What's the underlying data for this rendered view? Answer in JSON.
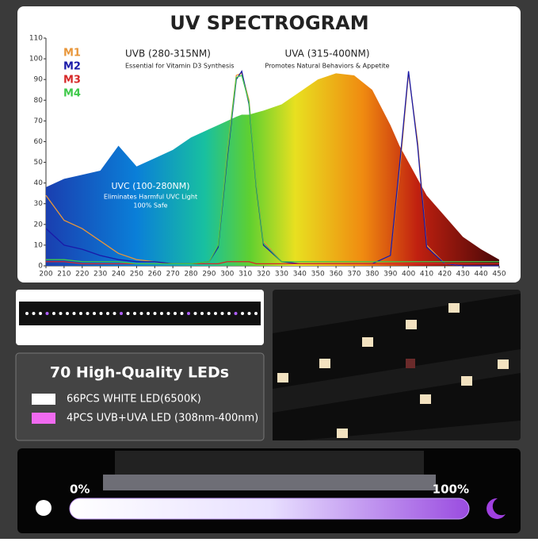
{
  "chart_data": {
    "type": "line",
    "title": "UV SPECTROGRAM",
    "x": [
      200,
      210,
      220,
      230,
      240,
      250,
      260,
      270,
      280,
      290,
      295,
      300,
      305,
      308,
      312,
      316,
      320,
      330,
      340,
      350,
      360,
      370,
      380,
      390,
      395,
      400,
      405,
      410,
      420,
      430,
      440,
      450
    ],
    "spectrum_values": [
      38,
      42,
      44,
      46,
      58,
      48,
      52,
      56,
      62,
      66,
      68,
      70,
      72,
      73,
      73,
      74,
      75,
      78,
      84,
      90,
      93,
      92,
      85,
      68,
      58,
      50,
      42,
      34,
      24,
      14,
      8,
      3
    ],
    "series": [
      {
        "name": "M1",
        "color": "#e8963a",
        "values": [
          34,
          22,
          18,
          12,
          6,
          3,
          2,
          1,
          1,
          2,
          10,
          55,
          92,
          93,
          80,
          40,
          12,
          2,
          1,
          1,
          1,
          1,
          1,
          5,
          45,
          93,
          60,
          10,
          1,
          0,
          0,
          0
        ]
      },
      {
        "name": "M2",
        "color": "#1a1aa8",
        "values": [
          18,
          10,
          8,
          5,
          3,
          2,
          2,
          1,
          1,
          2,
          9,
          52,
          90,
          94,
          78,
          38,
          10,
          2,
          1,
          1,
          1,
          1,
          1,
          5,
          48,
          94,
          58,
          9,
          1,
          0,
          0,
          0
        ]
      },
      {
        "name": "M3",
        "color": "#d62828",
        "values": [
          2,
          2,
          1,
          1,
          1,
          1,
          1,
          1,
          1,
          1,
          1,
          2,
          2,
          2,
          2,
          1,
          1,
          1,
          1,
          1,
          1,
          1,
          1,
          1,
          1,
          1,
          1,
          1,
          1,
          1,
          1,
          1
        ]
      },
      {
        "name": "M4",
        "color": "#3fc94a",
        "values": [
          3,
          3,
          2,
          2,
          2,
          1,
          1,
          1,
          1,
          2,
          10,
          54,
          91,
          92,
          79,
          39,
          11,
          2,
          2,
          2,
          2,
          2,
          2,
          2,
          2,
          2,
          2,
          2,
          2,
          2,
          2,
          2
        ]
      }
    ],
    "xlim": [
      200,
      450
    ],
    "ylim": [
      0,
      110
    ],
    "xticks": [
      200,
      210,
      220,
      230,
      240,
      250,
      260,
      270,
      280,
      290,
      300,
      310,
      320,
      330,
      340,
      350,
      360,
      370,
      380,
      390,
      400,
      410,
      420,
      430,
      440,
      450
    ],
    "yticks": [
      0,
      10,
      20,
      30,
      40,
      50,
      60,
      70,
      80,
      90,
      100,
      110
    ],
    "annotations": [
      "UVB (280-315NM)",
      "Essential for Vitamin D3 Synthesis",
      "UVA (315-400NM)",
      "Promotes Natural Behaviors & Appetite",
      "UVC (100-280NM)",
      "Eliminates Harmful UVC Light",
      "100% Safe"
    ]
  },
  "info": {
    "title": "70 High-Quality LEDs",
    "items": [
      "66PCS WHITE LED(6500K)",
      "4PCS UVB+UVA LED (308nm-400nm)"
    ]
  },
  "dimmer": {
    "low": "0%",
    "high": "100%"
  }
}
